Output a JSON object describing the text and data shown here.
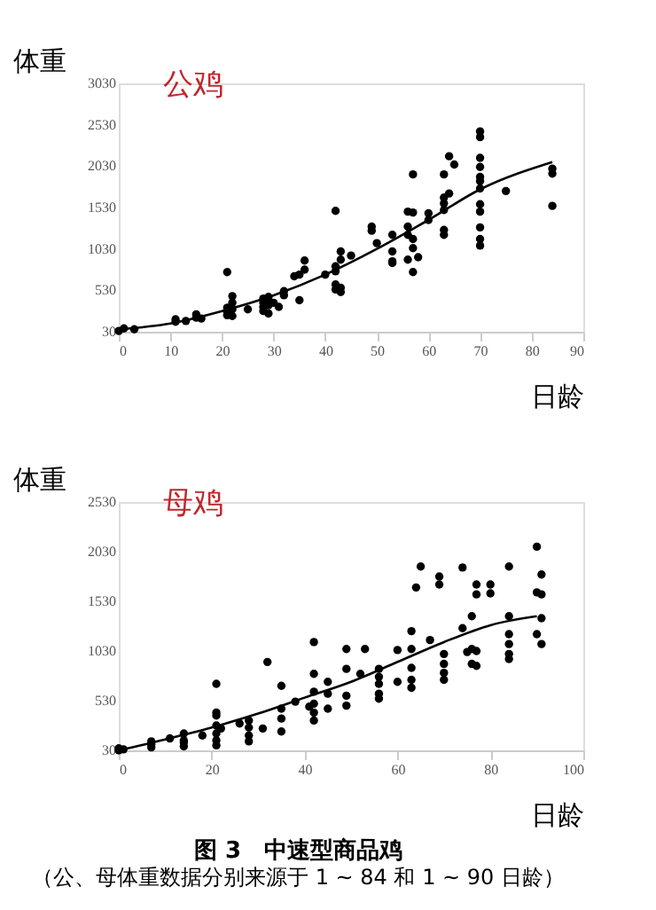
{
  "chart_data": [
    {
      "type": "scatter",
      "title": "公鸡",
      "ylabel": "体重",
      "xlabel": "日龄",
      "xlim": [
        0,
        90
      ],
      "xticks": [
        0,
        10,
        20,
        30,
        40,
        50,
        60,
        70,
        80,
        90
      ],
      "ylim": [
        30,
        3030
      ],
      "yticks": [
        30,
        530,
        1030,
        1530,
        2030,
        2530,
        3030
      ],
      "grid": false,
      "series": [
        {
          "color": "#000000",
          "marker": "circle",
          "x": [
            0,
            1,
            3,
            11,
            11,
            13,
            15,
            15,
            16,
            21,
            21,
            21,
            21,
            22,
            22,
            22,
            22,
            25,
            28,
            28,
            28,
            28,
            29,
            29,
            29,
            29,
            30,
            31,
            32,
            32,
            34,
            35,
            35,
            36,
            36,
            40,
            42,
            42,
            42,
            42,
            42,
            43,
            43,
            43,
            43,
            45,
            49,
            49,
            50,
            53,
            53,
            53,
            53,
            56,
            56,
            56,
            56,
            57,
            57,
            57,
            57,
            57,
            58,
            60,
            60,
            63,
            63,
            63,
            63,
            63,
            63,
            64,
            64,
            65,
            70,
            70,
            70,
            70,
            70,
            70,
            70,
            70,
            70,
            70,
            70,
            70,
            75,
            84,
            84,
            84
          ],
          "values": [
            40,
            70,
            60,
            150,
            180,
            160,
            200,
            240,
            190,
            750,
            320,
            270,
            230,
            460,
            380,
            220,
            300,
            300,
            430,
            380,
            330,
            280,
            450,
            400,
            350,
            250,
            380,
            330,
            520,
            470,
            700,
            410,
            720,
            890,
            780,
            720,
            1490,
            820,
            760,
            600,
            540,
            1000,
            900,
            560,
            510,
            950,
            1300,
            1250,
            1100,
            1200,
            1000,
            880,
            860,
            1480,
            1300,
            1200,
            900,
            1930,
            1470,
            1150,
            1040,
            750,
            930,
            1460,
            1380,
            1930,
            1650,
            1580,
            1500,
            1260,
            1200,
            2150,
            1700,
            2050,
            2450,
            2380,
            2130,
            2020,
            1900,
            1850,
            1760,
            1570,
            1480,
            1290,
            1150,
            1070,
            1730,
            2000,
            1940,
            1550
          ]
        },
        {
          "type": "line",
          "color": "#000000",
          "x": [
            0,
            10,
            20,
            30,
            40,
            50,
            60,
            70,
            84
          ],
          "values": [
            60,
            130,
            280,
            470,
            720,
            1030,
            1380,
            1750,
            2080
          ]
        }
      ]
    },
    {
      "type": "scatter",
      "title": "母鸡",
      "ylabel": "体重",
      "xlabel": "日龄",
      "xlim": [
        0,
        100
      ],
      "xticks": [
        0,
        20,
        40,
        60,
        80,
        100
      ],
      "ylim": [
        30,
        2530
      ],
      "yticks": [
        30,
        530,
        1030,
        1530,
        2030,
        2530
      ],
      "grid": false,
      "annotations": [
        "图 3　中速型商品鸡",
        "（公、母体重数据分别来源于 1 ~ 84 和 1 ~ 90 日龄）"
      ],
      "series": [
        {
          "color": "#000000",
          "marker": "circle",
          "x": [
            0,
            0,
            1,
            7,
            7,
            7,
            11,
            14,
            14,
            14,
            14,
            18,
            21,
            21,
            21,
            21,
            21,
            21,
            21,
            22,
            26,
            28,
            28,
            28,
            28,
            31,
            32,
            35,
            35,
            35,
            35,
            38,
            41,
            42,
            42,
            42,
            42,
            42,
            42,
            45,
            45,
            45,
            49,
            49,
            49,
            49,
            52,
            53,
            56,
            56,
            56,
            56,
            56,
            60,
            60,
            63,
            63,
            63,
            63,
            63,
            64,
            65,
            67,
            69,
            69,
            70,
            70,
            70,
            70,
            74,
            74,
            75,
            76,
            76,
            76,
            77,
            77,
            77,
            77,
            80,
            80,
            84,
            84,
            84,
            84,
            84,
            84,
            90,
            90,
            90,
            91,
            91,
            91,
            91
          ],
          "values": [
            30,
            50,
            40,
            60,
            90,
            120,
            150,
            200,
            130,
            70,
            110,
            180,
            700,
            410,
            380,
            280,
            200,
            130,
            80,
            250,
            300,
            330,
            260,
            180,
            120,
            250,
            920,
            680,
            450,
            350,
            220,
            520,
            470,
            1120,
            800,
            620,
            500,
            410,
            330,
            720,
            600,
            450,
            1050,
            850,
            580,
            480,
            800,
            1050,
            850,
            770,
            700,
            600,
            550,
            1040,
            720,
            1230,
            1050,
            860,
            740,
            660,
            1670,
            1880,
            1140,
            1780,
            1700,
            1000,
            900,
            810,
            740,
            1870,
            1260,
            1020,
            1380,
            1050,
            900,
            1700,
            1600,
            1030,
            880,
            1700,
            1610,
            1880,
            1380,
            1200,
            1100,
            1000,
            950,
            2080,
            1620,
            1200,
            1800,
            1600,
            1360,
            1100
          ]
        },
        {
          "type": "line",
          "color": "#000000",
          "x": [
            0,
            10,
            20,
            30,
            40,
            50,
            60,
            70,
            80,
            90
          ],
          "values": [
            30,
            140,
            260,
            400,
            560,
            720,
            920,
            1120,
            1290,
            1380
          ]
        }
      ]
    }
  ]
}
